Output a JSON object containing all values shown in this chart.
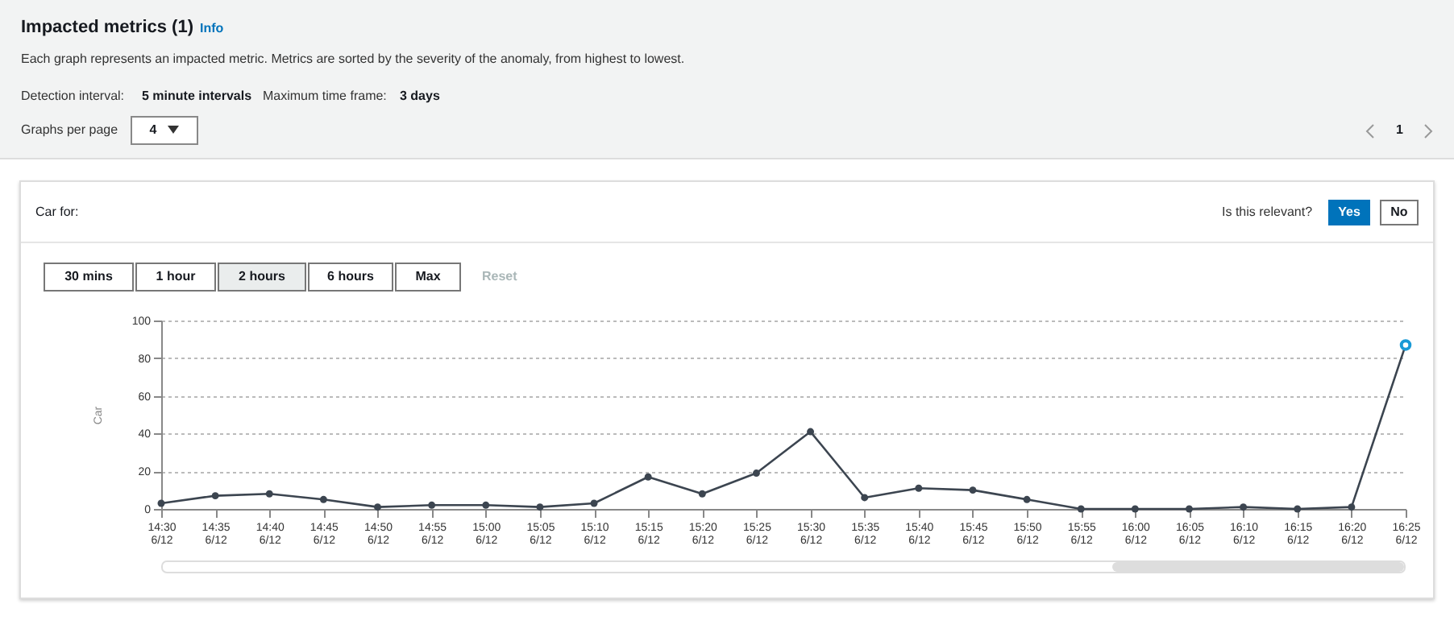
{
  "chart_data": {
    "type": "line",
    "title": "Impacted metrics (1)",
    "subtitle": "Each graph represents an impacted metric. Metrics are sorted by the severity of the anomaly, from highest to lowest.",
    "annotations": [
      "Info",
      "Detection interval:",
      "5 minute intervals",
      "Maximum time frame:",
      "3 days",
      "Graphs per page",
      "4",
      "1",
      "Car for:",
      "Is this relevant?",
      "Yes",
      "No",
      "30 mins",
      "1 hour",
      "2 hours",
      "6 hours",
      "Max",
      "Reset"
    ],
    "ylabel": "Car",
    "categories": [
      "14:30 6/12",
      "14:35 6/12",
      "14:40 6/12",
      "14:45 6/12",
      "14:50 6/12",
      "14:55 6/12",
      "15:00 6/12",
      "15:05 6/12",
      "15:10 6/12",
      "15:15 6/12",
      "15:20 6/12",
      "15:25 6/12",
      "15:30 6/12",
      "15:35 6/12",
      "15:40 6/12",
      "15:45 6/12",
      "15:50 6/12",
      "15:55 6/12",
      "16:00 6/12",
      "16:05 6/12",
      "16:10 6/12",
      "16:15 6/12",
      "16:20 6/12",
      "16:25 6/12"
    ],
    "series": [
      {
        "color": "#3c4550",
        "values": [
          3,
          7,
          8,
          5,
          1,
          2,
          2,
          1,
          3,
          17,
          8,
          19,
          41,
          6,
          11,
          10,
          5,
          0,
          0,
          0,
          1,
          0,
          1,
          87
        ]
      },
      {
        "type": "scatter",
        "color": "#1a9ad6",
        "x": [
          "16:25 6/12"
        ],
        "values": [
          87
        ]
      }
    ],
    "ylim": [
      0,
      100
    ],
    "yticks": [
      0,
      20,
      40,
      60,
      80,
      100
    ],
    "grid": "y",
    "marker": "circle"
  }
}
